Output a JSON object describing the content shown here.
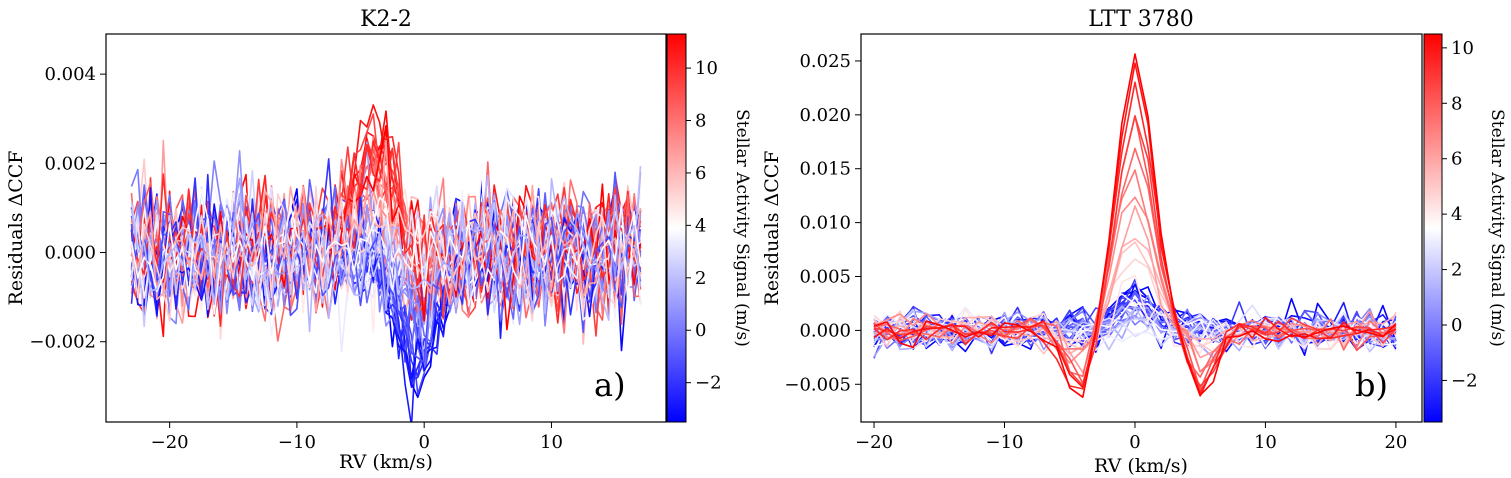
{
  "chart_data": [
    {
      "type": "line",
      "panel_label": "a)",
      "title": "K2-2",
      "xlabel": "RV (km/s)",
      "ylabel": "Residuals ΔCCF",
      "xlim": [
        -25,
        19
      ],
      "ylim": [
        -0.0038,
        0.0049
      ],
      "xticks": [
        -20,
        -10,
        0,
        10
      ],
      "xtick_labels": [
        "−20",
        "−10",
        "0",
        "10"
      ],
      "yticks": [
        -0.002,
        0.0,
        0.002,
        0.004
      ],
      "ytick_labels": [
        "−0.002",
        "0.000",
        "0.002",
        "0.004"
      ],
      "x_range": [
        -23,
        17
      ],
      "n_points": 81,
      "series_count": 60,
      "colorbar": {
        "label": "Stellar Activity Signal (m/s)",
        "cmap": "bwr",
        "range": [
          -3.5,
          11.3
        ],
        "ticks": [
          -2,
          0,
          2,
          4,
          6,
          8,
          10
        ],
        "tick_labels": [
          "−2",
          "0",
          "2",
          "4",
          "6",
          "8",
          "10"
        ]
      },
      "model": {
        "noise_sd": 0.00065,
        "center_pos": -3.8,
        "width_pos": 1.6,
        "center_neg": -0.5,
        "width_neg": 1.6,
        "amp_pos_per_unit": 0.00034,
        "amp_neg_per_unit": 0.0002,
        "activity_offset": 3.2,
        "seed": 17
      }
    },
    {
      "type": "line",
      "panel_label": "b)",
      "title": "LTT 3780",
      "xlabel": "RV (km/s)",
      "ylabel": "Residuals ΔCCF",
      "xlim": [
        -21,
        22
      ],
      "ylim": [
        -0.0085,
        0.0275
      ],
      "xticks": [
        -20,
        -10,
        0,
        10,
        20
      ],
      "xtick_labels": [
        "−20",
        "−10",
        "0",
        "10",
        "20"
      ],
      "yticks": [
        -0.005,
        0.0,
        0.005,
        0.01,
        0.015,
        0.02,
        0.025
      ],
      "ytick_labels": [
        "−0.005",
        "0.000",
        "0.005",
        "0.010",
        "0.015",
        "0.020",
        "0.025"
      ],
      "x_range": [
        -20,
        20
      ],
      "n_points": 41,
      "series_count": 40,
      "colorbar": {
        "label": "Stellar Activity Signal (m/s)",
        "cmap": "bwr",
        "range": [
          -3.5,
          10.5
        ],
        "ticks": [
          -2,
          0,
          2,
          4,
          6,
          8,
          10
        ],
        "tick_labels": [
          "−2",
          "0",
          "2",
          "4",
          "6",
          "8",
          "10"
        ]
      },
      "model": {
        "noise_sd": 0.0009,
        "center_pos": 0.0,
        "width_pos": 1.4,
        "side_offset": 4.3,
        "side_width": 1.0,
        "peak_at_max": 0.026,
        "side_at_max": -0.0065,
        "activity_offset": 3.0,
        "seed": 41
      }
    }
  ]
}
